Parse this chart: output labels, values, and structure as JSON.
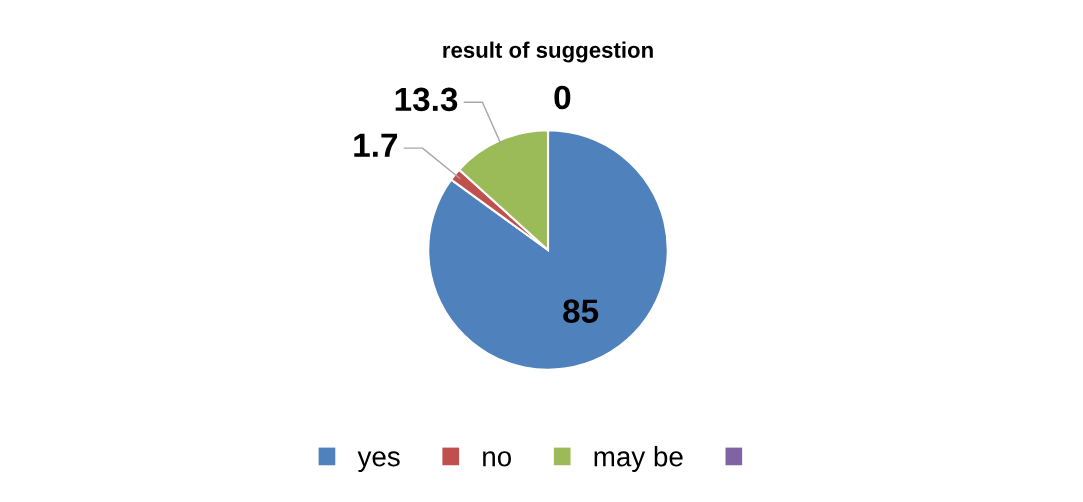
{
  "chart_data": {
    "type": "pie",
    "title": "result of suggestion",
    "categories": [
      "yes",
      "no",
      "may be",
      null
    ],
    "values": [
      85,
      1.7,
      13.3,
      0
    ],
    "colors": [
      "#4f81bd",
      "#c0504d",
      "#9bbb59",
      "#8064a2"
    ],
    "value_labels": [
      "85",
      "1.7",
      "13.3",
      "0"
    ],
    "legend": "bottom"
  }
}
